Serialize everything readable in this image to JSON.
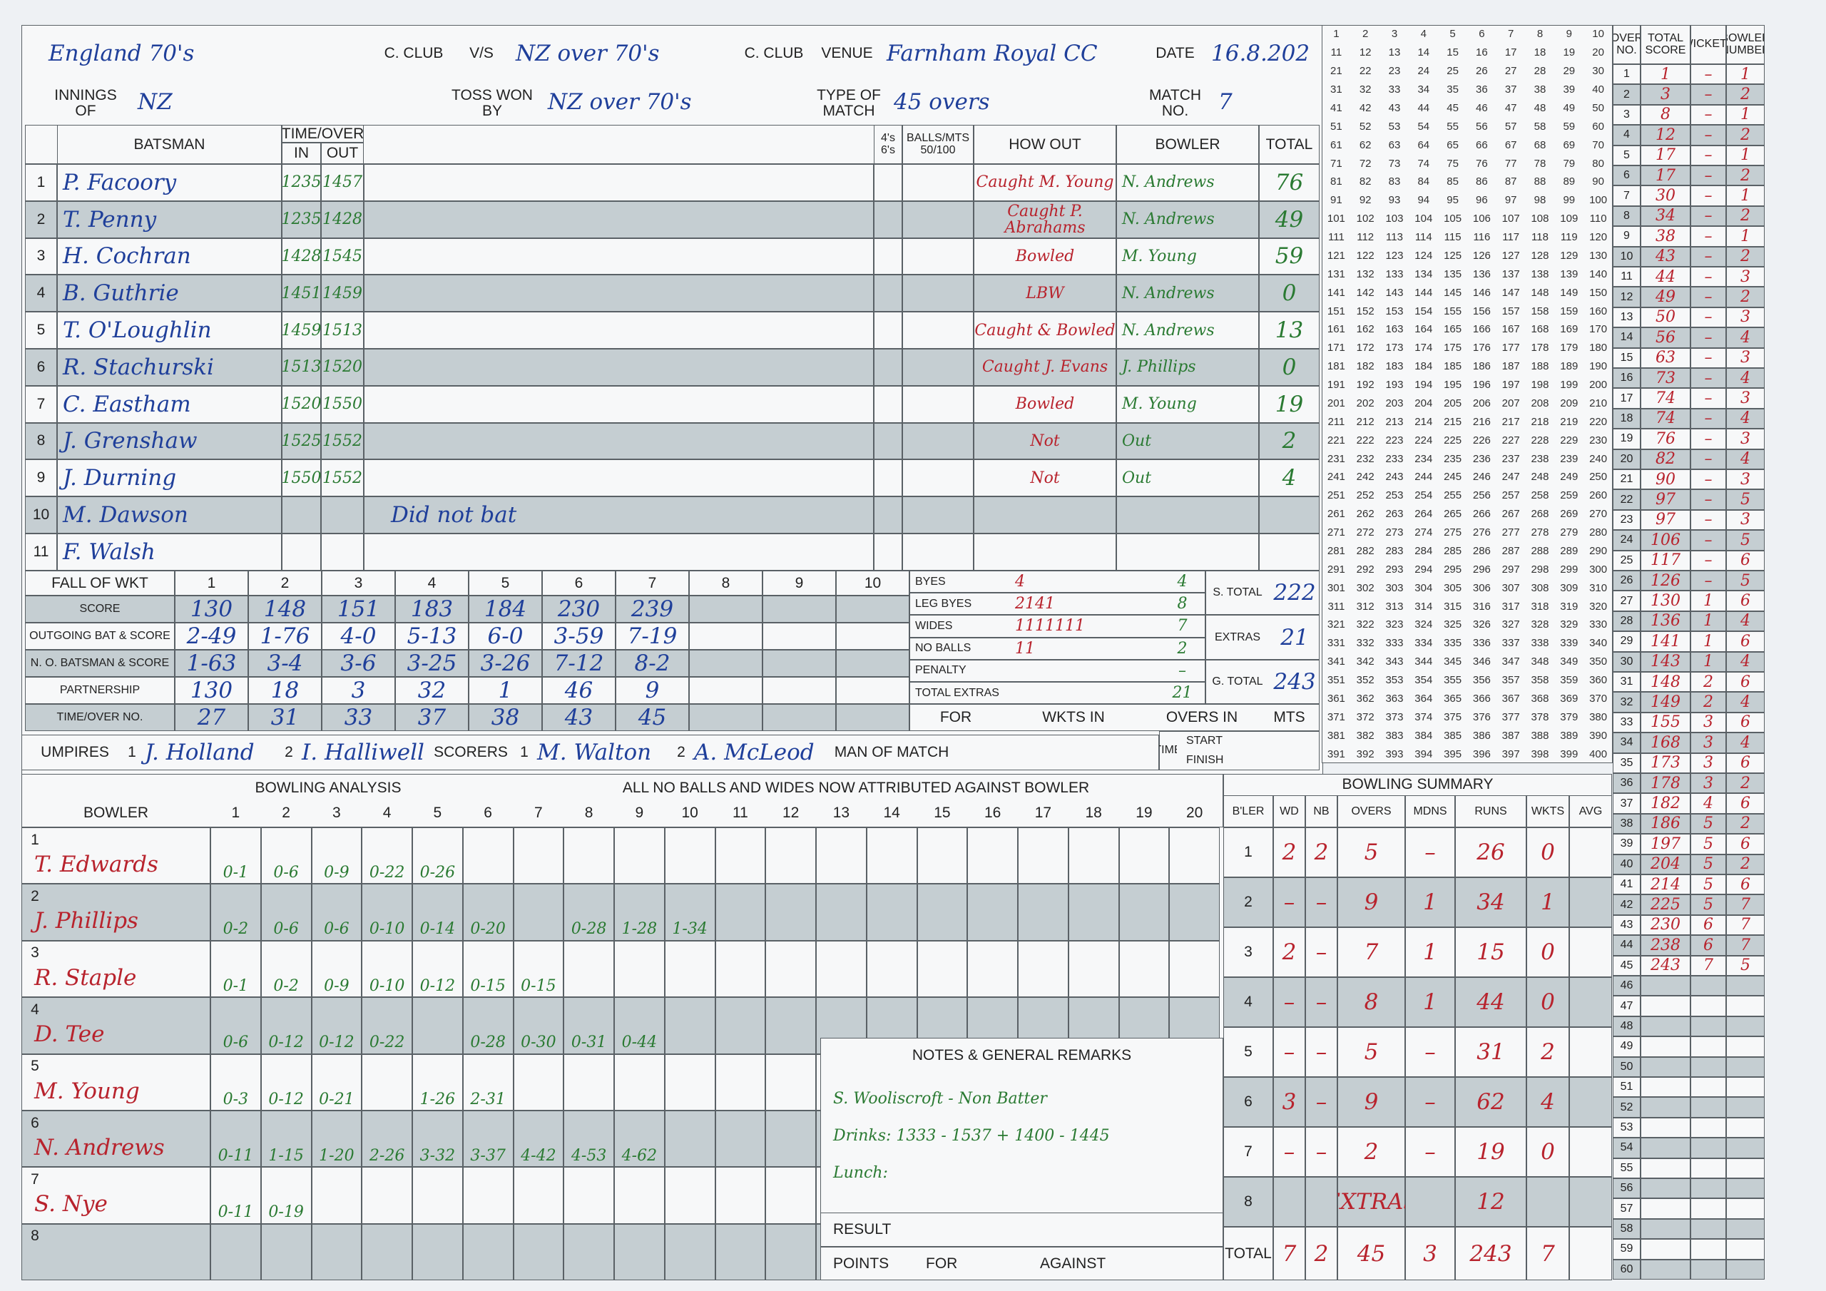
{
  "header": {
    "team1": "England 70's",
    "club1_label": "C. CLUB",
    "vs": "V/S",
    "team2": "NZ over 70's",
    "club2_label": "C. CLUB",
    "venue_label": "VENUE",
    "venue": "Farnham Royal CC",
    "date_label": "DATE",
    "date": "16.8.202",
    "innings_label": "INNINGS OF",
    "innings": "NZ",
    "toss_label": "TOSS WON BY",
    "toss": "NZ over 70's",
    "type_label": "TYPE OF MATCH",
    "type": "45 overs",
    "match_label": "MATCH NO.",
    "match_no": "7"
  },
  "batting": {
    "headers": [
      "BATSMAN",
      "TIME/OVER",
      "IN",
      "OUT",
      "4's 6's",
      "BALLS/MTS 50/100",
      "HOW OUT",
      "BOWLER",
      "TOTAL"
    ],
    "rows": [
      {
        "no": "1",
        "name": "P. Facoory",
        "in": "1235",
        "out": "1457",
        "how": "Caught M. Young",
        "bowler": "N. Andrews",
        "total": "76"
      },
      {
        "no": "2",
        "name": "T. Penny",
        "in": "1235",
        "out": "1428",
        "how": "Caught P. Abrahams",
        "bowler": "N. Andrews",
        "total": "49"
      },
      {
        "no": "3",
        "name": "H. Cochran",
        "in": "1428",
        "out": "1545",
        "how": "Bowled",
        "bowler": "M. Young",
        "total": "59"
      },
      {
        "no": "4",
        "name": "B. Guthrie",
        "in": "1451",
        "out": "1459",
        "how": "LBW",
        "bowler": "N. Andrews",
        "total": "0"
      },
      {
        "no": "5",
        "name": "T. O'Loughlin",
        "in": "1459",
        "out": "1513",
        "how": "Caught & Bowled",
        "bowler": "N. Andrews",
        "total": "13"
      },
      {
        "no": "6",
        "name": "R. Stachurski",
        "in": "1513",
        "out": "1520",
        "how": "Caught J. Evans",
        "bowler": "J. Phillips",
        "total": "0"
      },
      {
        "no": "7",
        "name": "C. Eastham",
        "in": "1520",
        "out": "1550",
        "how": "Bowled",
        "bowler": "M. Young",
        "total": "19"
      },
      {
        "no": "8",
        "name": "J. Grenshaw",
        "in": "1525",
        "out": "1552",
        "how": "Not",
        "bowler": "Out",
        "total": "2"
      },
      {
        "no": "9",
        "name": "J. Durning",
        "in": "1550",
        "out": "1552",
        "how": "Not",
        "bowler": "Out",
        "total": "4"
      },
      {
        "no": "10",
        "name": "M. Dawson"
      },
      {
        "no": "11",
        "name": "F. Walsh"
      }
    ],
    "note": "Did not bat"
  },
  "fall_of_wickets": {
    "title": "FALL OF WKT",
    "wickets": [
      "1",
      "2",
      "3",
      "4",
      "5",
      "6",
      "7",
      "8",
      "9",
      "10"
    ],
    "rows": [
      {
        "label": "SCORE",
        "values": [
          "130",
          "148",
          "151",
          "183",
          "184",
          "230",
          "239"
        ]
      },
      {
        "label": "OUTGOING BAT & SCORE",
        "values": [
          "2-49",
          "1-76",
          "4-0",
          "5-13",
          "6-0",
          "3-59",
          "7-19"
        ]
      },
      {
        "label": "N. O. BATSMAN & SCORE",
        "values": [
          "1-63",
          "3-4",
          "3-6",
          "3-25",
          "3-26",
          "7-12",
          "8-2"
        ]
      },
      {
        "label": "PARTNERSHIP",
        "values": [
          "130",
          "18",
          "3",
          "32",
          "1",
          "46",
          "9"
        ]
      },
      {
        "label": "TIME/OVER NO.",
        "values": [
          "27",
          "31",
          "33",
          "37",
          "38",
          "43",
          "45"
        ]
      }
    ]
  },
  "extras": {
    "rows": [
      {
        "label": "BYES",
        "detail": "4",
        "value": "4"
      },
      {
        "label": "LEG BYES",
        "detail": "2141",
        "value": "8"
      },
      {
        "label": "WIDES",
        "detail": "1111111",
        "value": "7"
      },
      {
        "label": "NO BALLS",
        "detail": "11",
        "value": "2"
      },
      {
        "label": "PENALTY",
        "value": "–"
      },
      {
        "label": "TOTAL EXTRAS",
        "value": "21"
      }
    ],
    "totals": [
      {
        "label": "S. TOTAL",
        "value": "222"
      },
      {
        "label": "EXTRAS",
        "value": "21"
      },
      {
        "label": "G. TOTAL",
        "value": "243"
      }
    ],
    "footer": [
      "FOR",
      "WKTS IN",
      "OVERS IN",
      "MTS"
    ],
    "time_label": "TIME",
    "start_label": "START",
    "finish_label": "FINISH"
  },
  "officials": {
    "umpires_label": "UMPIRES",
    "umpire1_no": "1",
    "umpire1": "J. Holland",
    "umpire2_no": "2",
    "umpire2": "I. Halliwell",
    "scorers_label": "SCORERS",
    "scorer1_no": "1",
    "scorer1": "M. Walton",
    "scorer2_no": "2",
    "scorer2": "A. McLeod",
    "man_of_match_label": "MAN OF MATCH"
  },
  "bowling": {
    "title": "BOWLING ANALYSIS",
    "note": "ALL NO BALLS AND WIDES NOW ATTRIBUTED AGAINST BOWLER",
    "bowler_label": "BOWLER",
    "overs": [
      "1",
      "2",
      "3",
      "4",
      "5",
      "6",
      "7",
      "8",
      "9",
      "10",
      "11",
      "12",
      "13",
      "14",
      "15",
      "16",
      "17",
      "18",
      "19",
      "20"
    ],
    "bowlers": [
      {
        "no": "1",
        "name": "T. Edwards",
        "figures": [
          "0-1",
          "0-6",
          "0-9",
          "0-22",
          "0-26"
        ]
      },
      {
        "no": "2",
        "name": "J. Phillips",
        "figures": [
          "0-2",
          "0-6",
          "0-6",
          "0-10",
          "0-14",
          "0-20",
          null,
          "0-28",
          "1-28",
          "1-34"
        ]
      },
      {
        "no": "3",
        "name": "R. Staple",
        "figures": [
          "0-1",
          "0-2",
          "0-9",
          "0-10",
          "0-12",
          "0-15",
          "0-15"
        ]
      },
      {
        "no": "4",
        "name": "D. Tee",
        "figures": [
          "0-6",
          "0-12",
          "0-12",
          "0-22",
          null,
          "0-28",
          "0-30",
          "0-31",
          "0-44"
        ]
      },
      {
        "no": "5",
        "name": "M. Young",
        "figures": [
          "0-3",
          "0-12",
          "0-21",
          null,
          "1-26",
          "2-31"
        ]
      },
      {
        "no": "6",
        "name": "N. Andrews",
        "figures": [
          "0-11",
          "1-15",
          "1-20",
          "2-26",
          "3-32",
          "3-37",
          "4-42",
          "4-53",
          "4-62"
        ]
      },
      {
        "no": "7",
        "name": "S. Nye",
        "figures": [
          "0-11",
          "0-19"
        ]
      },
      {
        "no": "8"
      }
    ]
  },
  "summary": {
    "title": "BOWLING SUMMARY",
    "headers": [
      "B'LER",
      "WD",
      "NB",
      "OVERS",
      "MDNS",
      "RUNS",
      "WKTS",
      "AVG"
    ],
    "rows": [
      {
        "no": "1",
        "wd": "2",
        "nb": "2",
        "overs": "5",
        "mdns": "–",
        "runs": "26",
        "wkts": "0"
      },
      {
        "no": "2",
        "wd": "–",
        "nb": "–",
        "overs": "9",
        "mdns": "1",
        "runs": "34",
        "wkts": "1"
      },
      {
        "no": "3",
        "wd": "2",
        "nb": "–",
        "overs": "7",
        "mdns": "1",
        "runs": "15",
        "wkts": "0"
      },
      {
        "no": "4",
        "wd": "–",
        "nb": "–",
        "overs": "8",
        "mdns": "1",
        "runs": "44",
        "wkts": "0"
      },
      {
        "no": "5",
        "wd": "–",
        "nb": "–",
        "overs": "5",
        "mdns": "–",
        "runs": "31",
        "wkts": "2"
      },
      {
        "no": "6",
        "wd": "3",
        "nb": "–",
        "overs": "9",
        "mdns": "–",
        "runs": "62",
        "wkts": "4"
      },
      {
        "no": "7",
        "wd": "–",
        "nb": "–",
        "overs": "2",
        "mdns": "–",
        "runs": "19",
        "wkts": "0"
      },
      {
        "no": "8",
        "overs": "EXTRAS",
        "runs": "12"
      }
    ],
    "total": {
      "no": "TOTAL",
      "wd": "7",
      "nb": "2",
      "overs": "45",
      "mdns": "3",
      "runs": "243",
      "wkts": "7"
    }
  },
  "notes": {
    "title": "NOTES & GENERAL REMARKS",
    "lines": [
      "S. Wooliscroft - Non Batter",
      "Drinks: 1333 - 1537 + 1400 - 1445",
      "Lunch:"
    ],
    "result_label": "RESULT",
    "points_label": "POINTS",
    "for_label": "FOR",
    "against_label": "AGAINST"
  },
  "tally": [
    1,
    2,
    3,
    4,
    5,
    6,
    7,
    8,
    9,
    10,
    11,
    12,
    13,
    14,
    15,
    16,
    17,
    18,
    19,
    20,
    21,
    22,
    23,
    24,
    25,
    26,
    27,
    28,
    29,
    30,
    31,
    32,
    33,
    34,
    35,
    36,
    37,
    38,
    39,
    40,
    41,
    42,
    43,
    44,
    45,
    46,
    47,
    48,
    49,
    50,
    51,
    52,
    53,
    54,
    55,
    56,
    57,
    58,
    59,
    60,
    61,
    62,
    63,
    64,
    65,
    66,
    67,
    68,
    69,
    70,
    71,
    72,
    73,
    74,
    75,
    76,
    77,
    78,
    79,
    80,
    81,
    82,
    83,
    84,
    85,
    86,
    87,
    88,
    89,
    90,
    91,
    92,
    93,
    94,
    95,
    96,
    97,
    98,
    99,
    100,
    101,
    102,
    103,
    104,
    105,
    106,
    107,
    108,
    109,
    110,
    111,
    112,
    113,
    114,
    115,
    116,
    117,
    118,
    119,
    120,
    121,
    122,
    123,
    124,
    125,
    126,
    127,
    128,
    129,
    130,
    131,
    132,
    133,
    134,
    135,
    136,
    137,
    138,
    139,
    140,
    141,
    142,
    143,
    144,
    145,
    146,
    147,
    148,
    149,
    150,
    151,
    152,
    153,
    154,
    155,
    156,
    157,
    158,
    159,
    160,
    161,
    162,
    163,
    164,
    165,
    166,
    167,
    168,
    169,
    170,
    171,
    172,
    173,
    174,
    175,
    176,
    177,
    178,
    179,
    180,
    181,
    182,
    183,
    184,
    185,
    186,
    187,
    188,
    189,
    190,
    191,
    192,
    193,
    194,
    195,
    196,
    197,
    198,
    199,
    200,
    201,
    202,
    203,
    204,
    205,
    206,
    207,
    208,
    209,
    210,
    211,
    212,
    213,
    214,
    215,
    216,
    217,
    218,
    219,
    220,
    221,
    222,
    223,
    224,
    225,
    226,
    227,
    228,
    229,
    230,
    231,
    232,
    233,
    234,
    235,
    236,
    237,
    238,
    239,
    240,
    241,
    242,
    243,
    244,
    245,
    246,
    247,
    248,
    249,
    250,
    251,
    252,
    253,
    254,
    255,
    256,
    257,
    258,
    259,
    260,
    261,
    262,
    263,
    264,
    265,
    266,
    267,
    268,
    269,
    270,
    271,
    272,
    273,
    274,
    275,
    276,
    277,
    278,
    279,
    280,
    281,
    282,
    283,
    284,
    285,
    286,
    287,
    288,
    289,
    290,
    291,
    292,
    293,
    294,
    295,
    296,
    297,
    298,
    299,
    300,
    301,
    302,
    303,
    304,
    305,
    306,
    307,
    308,
    309,
    310,
    311,
    312,
    313,
    314,
    315,
    316,
    317,
    318,
    319,
    320,
    321,
    322,
    323,
    324,
    325,
    326,
    327,
    328,
    329,
    330,
    331,
    332,
    333,
    334,
    335,
    336,
    337,
    338,
    339,
    340,
    341,
    342,
    343,
    344,
    345,
    346,
    347,
    348,
    349,
    350,
    351,
    352,
    353,
    354,
    355,
    356,
    357,
    358,
    359,
    360,
    361,
    362,
    363,
    364,
    365,
    366,
    367,
    368,
    369,
    370,
    371,
    372,
    373,
    374,
    375,
    376,
    377,
    378,
    379,
    380,
    381,
    382,
    383,
    384,
    385,
    386,
    387,
    388,
    389,
    390,
    391,
    392,
    393,
    394,
    395,
    396,
    397,
    398,
    399,
    400
  ],
  "over_table": {
    "headers": [
      "OVER NO.",
      "TOTAL SCORE",
      "WICKETS",
      "BOWLER NUMBER"
    ],
    "rows": [
      {
        "over": "1",
        "score": "1",
        "wkts": "–",
        "bowler": "1"
      },
      {
        "over": "2",
        "score": "3",
        "wkts": "–",
        "bowler": "2"
      },
      {
        "over": "3",
        "score": "8",
        "wkts": "–",
        "bowler": "1"
      },
      {
        "over": "4",
        "score": "12",
        "wkts": "–",
        "bowler": "2"
      },
      {
        "over": "5",
        "score": "17",
        "wkts": "–",
        "bowler": "1"
      },
      {
        "over": "6",
        "score": "17",
        "wkts": "–",
        "bowler": "2"
      },
      {
        "over": "7",
        "score": "30",
        "wkts": "–",
        "bowler": "1"
      },
      {
        "over": "8",
        "score": "34",
        "wkts": "–",
        "bowler": "2"
      },
      {
        "over": "9",
        "score": "38",
        "wkts": "–",
        "bowler": "1"
      },
      {
        "over": "10",
        "score": "43",
        "wkts": "–",
        "bowler": "2"
      },
      {
        "over": "11",
        "score": "44",
        "wkts": "–",
        "bowler": "3"
      },
      {
        "over": "12",
        "score": "49",
        "wkts": "–",
        "bowler": "2"
      },
      {
        "over": "13",
        "score": "50",
        "wkts": "–",
        "bowler": "3"
      },
      {
        "over": "14",
        "score": "56",
        "wkts": "–",
        "bowler": "4"
      },
      {
        "over": "15",
        "score": "63",
        "wkts": "–",
        "bowler": "3"
      },
      {
        "over": "16",
        "score": "73",
        "wkts": "–",
        "bowler": "4"
      },
      {
        "over": "17",
        "score": "74",
        "wkts": "–",
        "bowler": "3"
      },
      {
        "over": "18",
        "score": "74",
        "wkts": "–",
        "bowler": "4"
      },
      {
        "over": "19",
        "score": "76",
        "wkts": "–",
        "bowler": "3"
      },
      {
        "over": "20",
        "score": "82",
        "wkts": "–",
        "bowler": "4"
      },
      {
        "over": "21",
        "score": "90",
        "wkts": "–",
        "bowler": "3"
      },
      {
        "over": "22",
        "score": "97",
        "wkts": "–",
        "bowler": "5"
      },
      {
        "over": "23",
        "score": "97",
        "wkts": "–",
        "bowler": "3"
      },
      {
        "over": "24",
        "score": "106",
        "wkts": "–",
        "bowler": "5"
      },
      {
        "over": "25",
        "score": "117",
        "wkts": "–",
        "bowler": "6"
      },
      {
        "over": "26",
        "score": "126",
        "wkts": "–",
        "bowler": "5"
      },
      {
        "over": "27",
        "score": "130",
        "wkts": "1",
        "bowler": "6"
      },
      {
        "over": "28",
        "score": "136",
        "wkts": "1",
        "bowler": "4"
      },
      {
        "over": "29",
        "score": "141",
        "wkts": "1",
        "bowler": "6"
      },
      {
        "over": "30",
        "score": "143",
        "wkts": "1",
        "bowler": "4"
      },
      {
        "over": "31",
        "score": "148",
        "wkts": "2",
        "bowler": "6"
      },
      {
        "over": "32",
        "score": "149",
        "wkts": "2",
        "bowler": "4"
      },
      {
        "over": "33",
        "score": "155",
        "wkts": "3",
        "bowler": "6"
      },
      {
        "over": "34",
        "score": "168",
        "wkts": "3",
        "bowler": "4"
      },
      {
        "over": "35",
        "score": "173",
        "wkts": "3",
        "bowler": "6"
      },
      {
        "over": "36",
        "score": "178",
        "wkts": "3",
        "bowler": "2"
      },
      {
        "over": "37",
        "score": "182",
        "wkts": "4",
        "bowler": "6"
      },
      {
        "over": "38",
        "score": "186",
        "wkts": "5",
        "bowler": "2"
      },
      {
        "over": "39",
        "score": "197",
        "wkts": "5",
        "bowler": "6"
      },
      {
        "over": "40",
        "score": "204",
        "wkts": "5",
        "bowler": "2"
      },
      {
        "over": "41",
        "score": "214",
        "wkts": "5",
        "bowler": "6"
      },
      {
        "over": "42",
        "score": "225",
        "wkts": "5",
        "bowler": "7"
      },
      {
        "over": "43",
        "score": "230",
        "wkts": "6",
        "bowler": "7"
      },
      {
        "over": "44",
        "score": "238",
        "wkts": "6",
        "bowler": "7"
      },
      {
        "over": "45",
        "score": "243",
        "wkts": "7",
        "bowler": "5"
      },
      {
        "over": "46"
      },
      {
        "over": "47"
      },
      {
        "over": "48"
      },
      {
        "over": "49"
      },
      {
        "over": "50"
      },
      {
        "over": "51"
      },
      {
        "over": "52"
      },
      {
        "over": "53"
      },
      {
        "over": "54"
      },
      {
        "over": "55"
      },
      {
        "over": "56"
      },
      {
        "over": "57"
      },
      {
        "over": "58"
      },
      {
        "over": "59"
      },
      {
        "over": "60"
      }
    ]
  }
}
